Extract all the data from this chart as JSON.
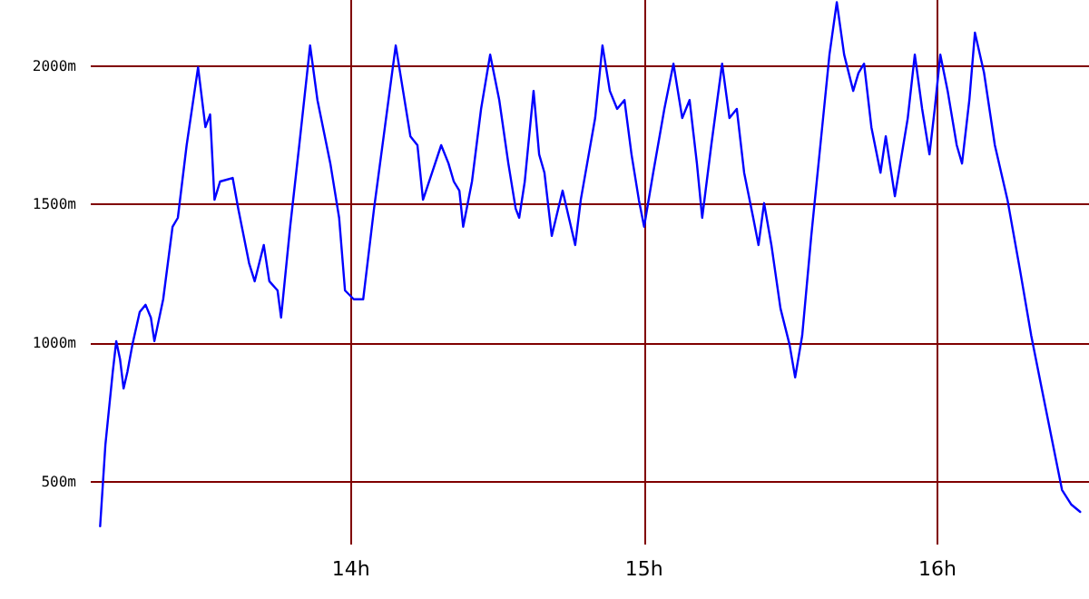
{
  "chart_data": {
    "type": "line",
    "x": [
      13.145,
      13.163,
      13.188,
      13.2,
      13.213,
      13.225,
      13.238,
      13.255,
      13.28,
      13.3,
      13.318,
      13.33,
      13.36,
      13.392,
      13.41,
      13.44,
      13.479,
      13.504,
      13.52,
      13.535,
      13.554,
      13.597,
      13.616,
      13.653,
      13.672,
      13.703,
      13.722,
      13.75,
      13.762,
      13.793,
      13.824,
      13.861,
      13.886,
      13.93,
      13.96,
      13.98,
      14.01,
      14.042,
      14.079,
      14.116,
      14.153,
      14.178,
      14.203,
      14.227,
      14.246,
      14.277,
      14.308,
      14.333,
      14.351,
      14.37,
      14.383,
      14.413,
      14.444,
      14.475,
      14.506,
      14.537,
      14.562,
      14.574,
      14.593,
      14.623,
      14.642,
      14.66,
      14.685,
      14.722,
      14.765,
      14.784,
      14.833,
      14.858,
      14.883,
      14.908,
      14.933,
      14.957,
      14.982,
      15.0,
      15.031,
      15.069,
      15.1,
      15.13,
      15.155,
      15.18,
      15.198,
      15.229,
      15.266,
      15.291,
      15.316,
      15.341,
      15.372,
      15.39,
      15.409,
      15.434,
      15.465,
      15.496,
      15.515,
      15.539,
      15.57,
      15.601,
      15.632,
      15.657,
      15.682,
      15.713,
      15.731,
      15.75,
      15.775,
      15.806,
      15.824,
      15.855,
      15.899,
      15.923,
      15.948,
      15.973,
      15.991,
      16.01,
      16.035,
      16.066,
      16.084,
      16.109,
      16.128,
      16.159,
      16.196,
      16.239,
      16.283,
      16.32,
      16.357,
      16.394,
      16.425,
      16.456,
      16.487
    ],
    "series": [
      {
        "color": "#0000ff",
        "values": [
          339,
          634,
          896,
          1007,
          941,
          836,
          896,
          994,
          1112,
          1138,
          1092,
          1007,
          1158,
          1420,
          1452,
          1714,
          1995,
          1779,
          1825,
          1517,
          1583,
          1596,
          1485,
          1288,
          1223,
          1354,
          1223,
          1190,
          1092,
          1420,
          1714,
          2074,
          1877,
          1648,
          1452,
          1190,
          1158,
          1158,
          1485,
          1779,
          2074,
          1910,
          1746,
          1714,
          1517,
          1615,
          1714,
          1648,
          1583,
          1550,
          1420,
          1583,
          1845,
          2041,
          1877,
          1648,
          1485,
          1452,
          1583,
          1910,
          1681,
          1615,
          1387,
          1550,
          1354,
          1517,
          1812,
          2074,
          1910,
          1845,
          1877,
          1681,
          1517,
          1420,
          1615,
          1845,
          2008,
          1812,
          1877,
          1648,
          1452,
          1714,
          2008,
          1812,
          1845,
          1615,
          1452,
          1354,
          1505,
          1354,
          1125,
          994,
          876,
          1027,
          1387,
          1714,
          2041,
          2230,
          2041,
          1910,
          1975,
          2008,
          1779,
          1615,
          1746,
          1530,
          1812,
          2041,
          1845,
          1681,
          1845,
          2041,
          1910,
          1714,
          1648,
          1877,
          2120,
          1976,
          1714,
          1517,
          1256,
          1027,
          830,
          634,
          470,
          418,
          391
        ]
      }
    ],
    "xlim": [
      13.113,
      16.517
    ],
    "ylim": [
      273,
      2238
    ],
    "xticks": [
      {
        "value": 14,
        "label": "14h"
      },
      {
        "value": 15,
        "label": "15h"
      },
      {
        "value": 16,
        "label": "16h"
      }
    ],
    "yticks": [
      {
        "value": 500,
        "label": "500m"
      },
      {
        "value": 1000,
        "label": "1000m"
      },
      {
        "value": 1500,
        "label": "1500m"
      },
      {
        "value": 2000,
        "label": "2000m"
      }
    ],
    "grid": true,
    "marker": "none",
    "line_style": "solid"
  }
}
